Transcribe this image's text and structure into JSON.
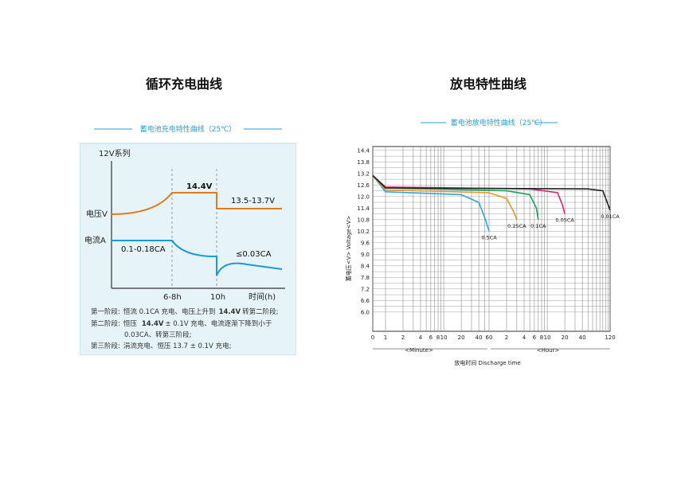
{
  "page": {
    "left_title": "循环充电曲线",
    "right_title": "放电特性曲线"
  },
  "charge_chart": {
    "banner": "蓄电池充电特性曲线（25℃）",
    "system_label": "12V系列",
    "voltage_label": "电压V",
    "current_label": "电流A",
    "voltage_peak_label": "14.4V",
    "voltage_float_label": "13.5-13.7V",
    "current_initial_label": "0.1-0.18CA",
    "current_final_label": "≤0.03CA",
    "x_tick_1": "6-8h",
    "x_tick_2": "10h",
    "x_axis_label": "时间(h)",
    "notes": [
      {
        "stage": "第一阶段:",
        "text": "恒流 0.1CA 充电、电压上升到",
        "bold": "14.4V",
        "tail": "转第二阶段;"
      },
      {
        "stage": "第二阶段:",
        "text": "恒压",
        "bold": "14.4V",
        "tail": "± 0.1V 充电、电流逐渐下降到小于"
      },
      {
        "stage": "",
        "text": "0.03CA、转第三阶段;",
        "bold": "",
        "tail": ""
      },
      {
        "stage": "第三阶段:",
        "text": "涓流充电、恒压 13.7 ± 0.1V 充电;",
        "bold": "",
        "tail": ""
      }
    ],
    "colors": {
      "voltage": "#e07b1e",
      "current": "#1a9ad6",
      "panel_bg": "#e6f3f9",
      "banner": "#2a9fd6"
    }
  },
  "chart_data": {
    "type": "line",
    "title": "蓄电池放电特性曲线（25℃）",
    "ylabel": "蓄电压<V> Voltage<V>",
    "xlabel": "放电时间 Discharge time",
    "x_unit_labels": [
      "<Minute>",
      "<Hour>"
    ],
    "ylim": [
      5.0,
      14.6
    ],
    "yticks": [
      "14.4",
      "13.8",
      "13.2",
      "12.6",
      "12.0",
      "11.4",
      "10.8",
      "10.2",
      "9.6",
      "9.0",
      "8.4",
      "7.8",
      "7.2",
      "6.6",
      "6.0"
    ],
    "xticks": [
      "0",
      "1",
      "2",
      "4",
      "6",
      "8",
      "10",
      "20",
      "40",
      "60",
      "2",
      "4",
      "6",
      "8",
      "10",
      "20",
      "40",
      "120"
    ],
    "series": [
      {
        "name": "0.5CA",
        "color": "#2aa8d8",
        "points": [
          [
            0,
            13.1
          ],
          [
            1,
            12.25
          ],
          [
            20,
            12.1
          ],
          [
            40,
            11.7
          ],
          [
            52,
            10.8
          ],
          [
            60,
            10.2
          ]
        ]
      },
      {
        "name": "0.25CA",
        "color": "#e8952a",
        "points": [
          [
            0,
            13.1
          ],
          [
            1,
            12.35
          ],
          [
            60,
            12.2
          ],
          [
            120,
            11.9
          ],
          [
            160,
            11.2
          ],
          [
            180,
            10.8
          ]
        ]
      },
      {
        "name": "0.1CA",
        "color": "#1aa55a",
        "points": [
          [
            0,
            13.1
          ],
          [
            1,
            12.45
          ],
          [
            120,
            12.3
          ],
          [
            300,
            12.1
          ],
          [
            390,
            11.4
          ],
          [
            420,
            10.8
          ]
        ]
      },
      {
        "name": "0.05CA",
        "color": "#d6267a",
        "points": [
          [
            0,
            13.1
          ],
          [
            1,
            12.5
          ],
          [
            300,
            12.4
          ],
          [
            900,
            12.2
          ],
          [
            1080,
            11.6
          ],
          [
            1200,
            11.1
          ]
        ]
      },
      {
        "name": "0.01CA",
        "color": "#222222",
        "points": [
          [
            0,
            13.1
          ],
          [
            1,
            12.45
          ],
          [
            3000,
            12.4
          ],
          [
            5400,
            12.3
          ],
          [
            6600,
            11.6
          ],
          [
            7200,
            11.3
          ]
        ]
      }
    ],
    "grid": true,
    "colors": {
      "grid": "#555555",
      "banner": "#2a9fd6"
    }
  }
}
